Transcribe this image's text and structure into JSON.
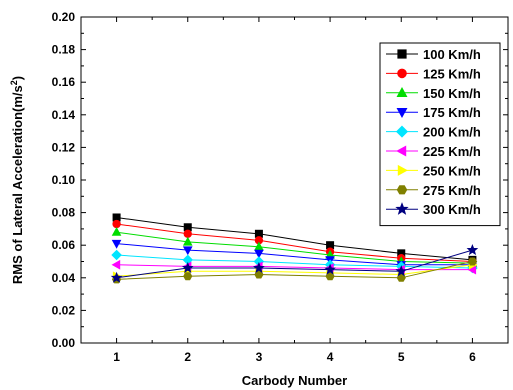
{
  "chart_data": {
    "type": "line",
    "title": "",
    "xlabel": "Carbody Number",
    "ylabel_main": "RMS of Lateral Acceleration(m/s",
    "ylabel_sup": "2",
    "ylabel_end": ")",
    "xlim": [
      0.5,
      6.5
    ],
    "ylim": [
      0.0,
      0.2
    ],
    "x": [
      1,
      2,
      3,
      4,
      5,
      6
    ],
    "x_ticks": [
      "1",
      "2",
      "3",
      "4",
      "5",
      "6"
    ],
    "y_ticks": [
      "0.00",
      "0.02",
      "0.04",
      "0.06",
      "0.08",
      "0.10",
      "0.12",
      "0.14",
      "0.16",
      "0.18",
      "0.20"
    ],
    "grid": false,
    "legend_position": "top-right",
    "series": [
      {
        "name": "100 Km/h",
        "color": "#000000",
        "marker": "square",
        "values": [
          0.077,
          0.071,
          0.067,
          0.06,
          0.055,
          0.051
        ]
      },
      {
        "name": "125 Km/h",
        "color": "#ff0000",
        "marker": "circle",
        "values": [
          0.073,
          0.067,
          0.063,
          0.056,
          0.052,
          0.05
        ]
      },
      {
        "name": "150 Km/h",
        "color": "#00dd00",
        "marker": "triangle-up",
        "values": [
          0.068,
          0.062,
          0.059,
          0.054,
          0.05,
          0.049
        ]
      },
      {
        "name": "175 Km/h",
        "color": "#0000ff",
        "marker": "triangle-down",
        "values": [
          0.061,
          0.057,
          0.055,
          0.051,
          0.048,
          0.048
        ]
      },
      {
        "name": "200 Km/h",
        "color": "#00e5ff",
        "marker": "diamond",
        "values": [
          0.054,
          0.051,
          0.05,
          0.048,
          0.047,
          0.046
        ]
      },
      {
        "name": "225 Km/h",
        "color": "#ff00ff",
        "marker": "triangle-left",
        "values": [
          0.048,
          0.047,
          0.047,
          0.046,
          0.045,
          0.045
        ]
      },
      {
        "name": "250 Km/h",
        "color": "#ffff00",
        "marker": "triangle-right",
        "values": [
          0.041,
          0.044,
          0.044,
          0.043,
          0.042,
          0.048
        ]
      },
      {
        "name": "275 Km/h",
        "color": "#808000",
        "marker": "hexagon",
        "values": [
          0.039,
          0.041,
          0.042,
          0.041,
          0.04,
          0.05
        ]
      },
      {
        "name": "300 Km/h",
        "color": "#000080",
        "marker": "star",
        "values": [
          0.04,
          0.046,
          0.046,
          0.045,
          0.044,
          0.057
        ]
      }
    ]
  }
}
